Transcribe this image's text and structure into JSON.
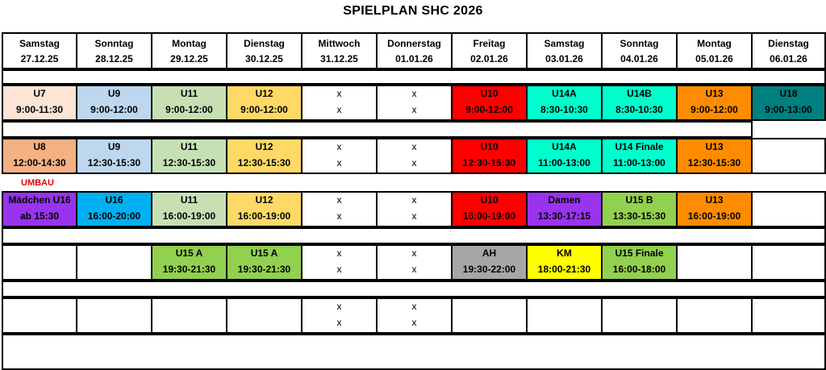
{
  "title": "SPIELPLAN SHC 2026",
  "note": "UMBAU",
  "colors": {
    "peach": "#fce4d6",
    "lightblue": "#bdd7ee",
    "lightgreen": "#c6e0b4",
    "yellow": "#ffd966",
    "red": "#ff0000",
    "teal": "#00ffcc",
    "orange": "#ff8c00",
    "darkteal": "#008080",
    "salmon": "#f4b183",
    "purple": "#9933ee",
    "blue": "#00b0f0",
    "green": "#92d050",
    "gray": "#a6a6a6",
    "brightyellow": "#ffff00",
    "white": "#ffffff"
  },
  "days": [
    {
      "day": "Samstag",
      "date": "27.12.25"
    },
    {
      "day": "Sonntag",
      "date": "28.12.25"
    },
    {
      "day": "Montag",
      "date": "29.12.25"
    },
    {
      "day": "Dienstag",
      "date": "30.12.25"
    },
    {
      "day": "Mittwoch",
      "date": "31.12.25"
    },
    {
      "day": "Donnerstag",
      "date": "01.01.26"
    },
    {
      "day": "Freitag",
      "date": "02.01.26"
    },
    {
      "day": "Samstag",
      "date": "03.01.26"
    },
    {
      "day": "Sonntag",
      "date": "04.01.26"
    },
    {
      "day": "Montag",
      "date": "05.01.26"
    },
    {
      "day": "Dienstag",
      "date": "06.01.26"
    }
  ],
  "blocks": [
    [
      {
        "l1": "U7",
        "l2": "9:00-11:30",
        "c": "peach"
      },
      {
        "l1": "U9",
        "l2": "9:00-12:00",
        "c": "lightblue"
      },
      {
        "l1": "U11",
        "l2": "9:00-12:00",
        "c": "lightgreen"
      },
      {
        "l1": "U12",
        "l2": "9:00-12:00",
        "c": "yellow"
      },
      {
        "l1": "x",
        "l2": "x",
        "c": "white",
        "x": true
      },
      {
        "l1": "x",
        "l2": "x",
        "c": "white",
        "x": true
      },
      {
        "l1": "U10",
        "l2": "9:00-12:00",
        "c": "red"
      },
      {
        "l1": "U14A",
        "l2": "8:30-10:30",
        "c": "teal"
      },
      {
        "l1": "U14B",
        "l2": "8:30-10:30",
        "c": "teal"
      },
      {
        "l1": "U13",
        "l2": "9:00-12:00",
        "c": "orange"
      },
      {
        "l1": "U18",
        "l2": "9:00-13:00",
        "c": "darkteal"
      }
    ],
    [
      {
        "l1": "U8",
        "l2": "12:00-14:30",
        "c": "salmon"
      },
      {
        "l1": "U9",
        "l2": "12:30-15:30",
        "c": "lightblue"
      },
      {
        "l1": "U11",
        "l2": "12:30-15:30",
        "c": "lightgreen"
      },
      {
        "l1": "U12",
        "l2": "12:30-15:30",
        "c": "yellow"
      },
      {
        "l1": "x",
        "l2": "x",
        "c": "white",
        "x": true
      },
      {
        "l1": "x",
        "l2": "x",
        "c": "white",
        "x": true
      },
      {
        "l1": "U10",
        "l2": "12:30-15:30",
        "c": "red"
      },
      {
        "l1": "U14A",
        "l2": "11:00-13:00",
        "c": "teal"
      },
      {
        "l1": "U14 Finale",
        "l2": "11:00-13:00",
        "c": "teal"
      },
      {
        "l1": "U13",
        "l2": "12:30-15:30",
        "c": "orange"
      },
      {
        "l1": "",
        "l2": "",
        "c": "white"
      }
    ],
    [
      {
        "l1": "Mädchen U16",
        "l2": "ab 15:30",
        "c": "purple"
      },
      {
        "l1": "U16",
        "l2": "16:00-20:00",
        "c": "blue"
      },
      {
        "l1": "U11",
        "l2": "16:00-19:00",
        "c": "lightgreen"
      },
      {
        "l1": "U12",
        "l2": "16:00-19:00",
        "c": "yellow"
      },
      {
        "l1": "x",
        "l2": "x",
        "c": "white",
        "x": true
      },
      {
        "l1": "x",
        "l2": "x",
        "c": "white",
        "x": true
      },
      {
        "l1": "U10",
        "l2": "16:00-19:00",
        "c": "red"
      },
      {
        "l1": "Damen",
        "l2": "13:30-17:15",
        "c": "purple"
      },
      {
        "l1": "U15 B",
        "l2": "13:30-15:30",
        "c": "green"
      },
      {
        "l1": "U13",
        "l2": "16:00-19:00",
        "c": "orange"
      },
      {
        "l1": "",
        "l2": "",
        "c": "white"
      }
    ],
    [
      {
        "l1": "",
        "l2": "",
        "c": "white"
      },
      {
        "l1": "",
        "l2": "",
        "c": "white"
      },
      {
        "l1": "U15 A",
        "l2": "19:30-21:30",
        "c": "green"
      },
      {
        "l1": "U15 A",
        "l2": "19:30-21:30",
        "c": "green"
      },
      {
        "l1": "x",
        "l2": "x",
        "c": "white",
        "x": true
      },
      {
        "l1": "x",
        "l2": "x",
        "c": "white",
        "x": true
      },
      {
        "l1": "AH",
        "l2": "19:30-22:00",
        "c": "gray"
      },
      {
        "l1": "KM",
        "l2": "18:00-21:30",
        "c": "brightyellow"
      },
      {
        "l1": "U15 Finale",
        "l2": "16:00-18:00",
        "c": "green"
      },
      {
        "l1": "",
        "l2": "",
        "c": "white"
      },
      {
        "l1": "",
        "l2": "",
        "c": "white"
      }
    ],
    [
      {
        "l1": "",
        "l2": "",
        "c": "white"
      },
      {
        "l1": "",
        "l2": "",
        "c": "white"
      },
      {
        "l1": "",
        "l2": "",
        "c": "white"
      },
      {
        "l1": "",
        "l2": "",
        "c": "white"
      },
      {
        "l1": "x",
        "l2": "x",
        "c": "white",
        "x": true
      },
      {
        "l1": "x",
        "l2": "x",
        "c": "white",
        "x": true
      },
      {
        "l1": "",
        "l2": "",
        "c": "white"
      },
      {
        "l1": "",
        "l2": "",
        "c": "white"
      },
      {
        "l1": "",
        "l2": "",
        "c": "white"
      },
      {
        "l1": "",
        "l2": "",
        "c": "white"
      },
      {
        "l1": "",
        "l2": "",
        "c": "white"
      }
    ]
  ]
}
